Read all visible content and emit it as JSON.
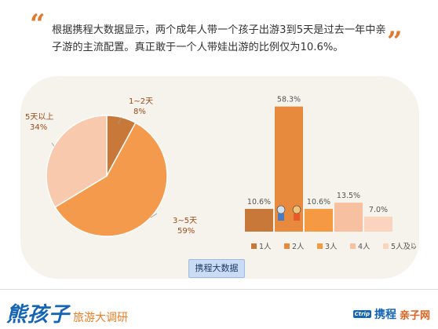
{
  "quote": {
    "open_mark": "“",
    "close_mark": "”",
    "text": "根据携程大数据显示，两个成年人带一个孩子出游3到5天是过去一年中亲子游的主流配置。真正敢于一个人带娃出游的比例仅为10.6%。"
  },
  "source_badge": "携程大数据",
  "footer": {
    "logo_main": "熊孩子",
    "logo_sub": "旅游大调研",
    "ctrip_en": "Ctrip",
    "ctrip_cn": "携程",
    "site_name": "亲子网"
  },
  "chart_data": [
    {
      "type": "pie",
      "slices": [
        {
          "label": "1~2天",
          "value": 8,
          "value_label": "8%",
          "color": "#c8793a"
        },
        {
          "label": "3~5天",
          "value": 59,
          "value_label": "59%",
          "color": "#f49a4c"
        },
        {
          "label": "5天以上",
          "value": 34,
          "value_label": "34%",
          "color": "#f8c9ad"
        }
      ],
      "title": ""
    },
    {
      "type": "bar",
      "categories": [
        "1人",
        "2人",
        "3人",
        "4人",
        "5人及以上"
      ],
      "values": [
        10.6,
        58.3,
        10.6,
        13.5,
        7.0
      ],
      "value_labels": [
        "10.6%",
        "58.3%",
        "10.6%",
        "13.5%",
        "7.0%"
      ],
      "colors": [
        "#c8793a",
        "#e88a3d",
        "#f59a42",
        "#f7c0a1",
        "#fbd4c0"
      ],
      "ylim": [
        0,
        60
      ],
      "legend_position": "bottom"
    }
  ]
}
